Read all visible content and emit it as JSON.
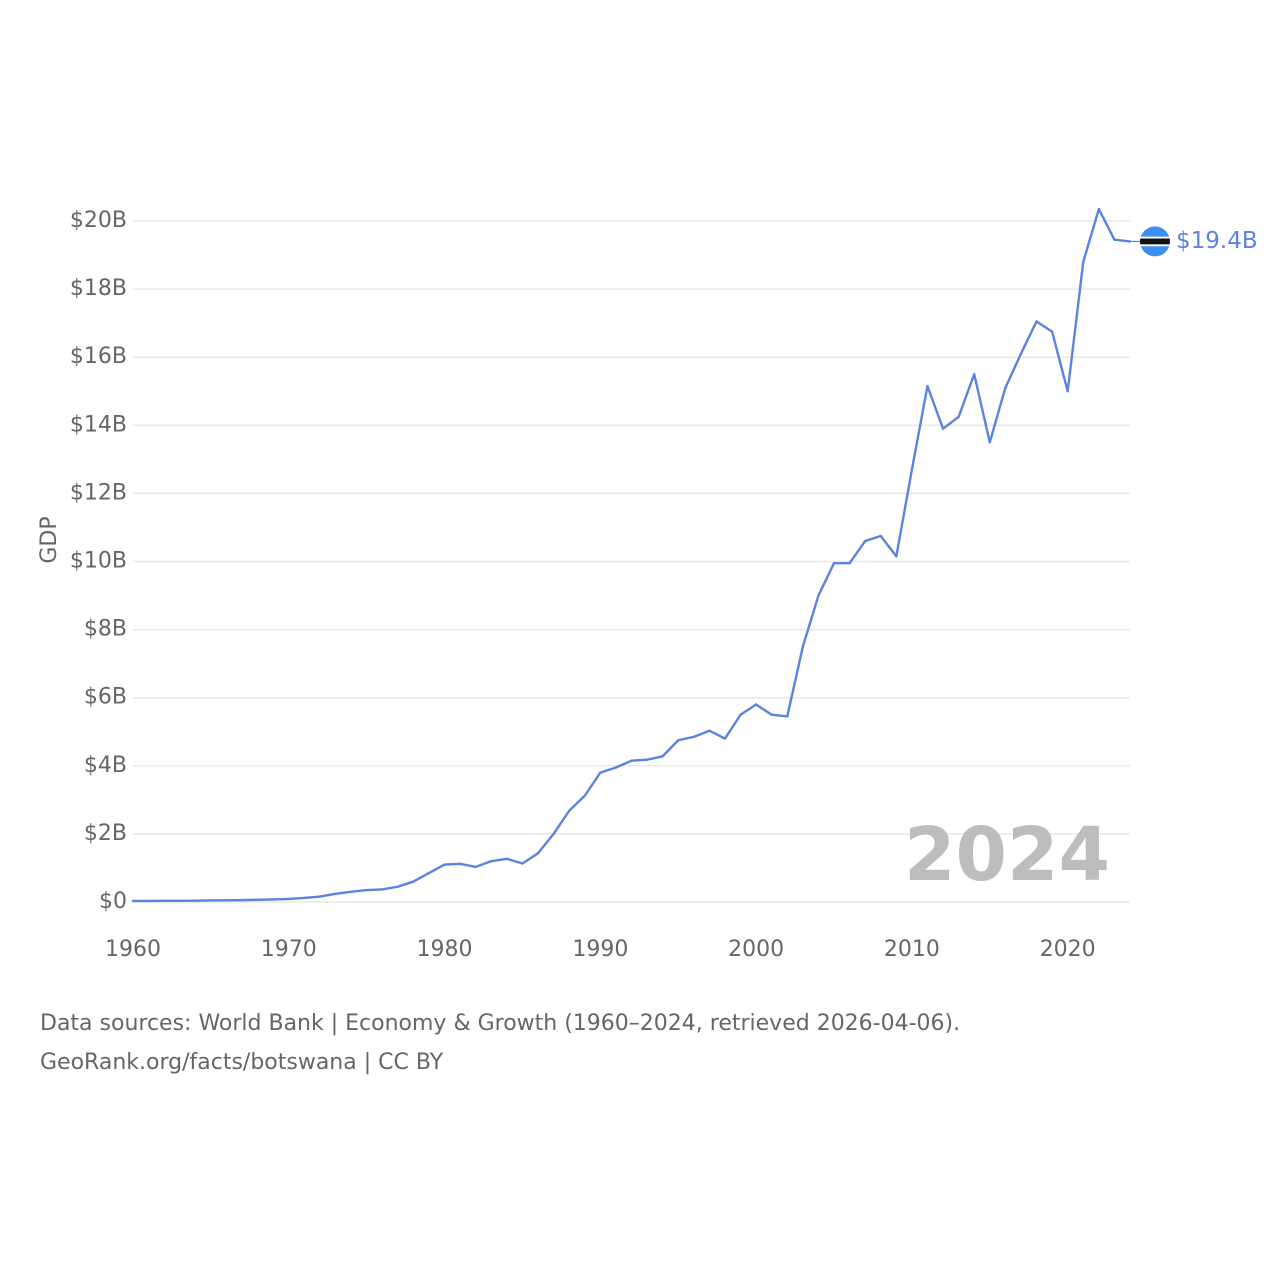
{
  "chart_data": {
    "type": "line",
    "title": "",
    "xlabel": "",
    "ylabel": "GDP",
    "xlim": [
      1960,
      2024
    ],
    "ylim": [
      0,
      20
    ],
    "x_ticks": [
      1960,
      1970,
      1980,
      1990,
      2000,
      2010,
      2020
    ],
    "x_tick_labels": [
      "1960",
      "1970",
      "1980",
      "1990",
      "2000",
      "2010",
      "2020"
    ],
    "y_ticks": [
      0,
      2,
      4,
      6,
      8,
      10,
      12,
      14,
      16,
      18,
      20
    ],
    "y_tick_labels": [
      "$0",
      "$2B",
      "$4B",
      "$6B",
      "$8B",
      "$10B",
      "$12B",
      "$14B",
      "$16B",
      "$18B",
      "$20B"
    ],
    "grid": true,
    "unit": "billion USD",
    "series": [
      {
        "name": "Botswana",
        "color": "#5b83e0",
        "x": [
          1960,
          1961,
          1962,
          1963,
          1964,
          1965,
          1966,
          1967,
          1968,
          1969,
          1970,
          1971,
          1972,
          1973,
          1974,
          1975,
          1976,
          1977,
          1978,
          1979,
          1980,
          1981,
          1982,
          1983,
          1984,
          1985,
          1986,
          1987,
          1988,
          1989,
          1990,
          1991,
          1992,
          1993,
          1994,
          1995,
          1996,
          1997,
          1998,
          1999,
          2000,
          2001,
          2002,
          2003,
          2004,
          2005,
          2006,
          2007,
          2008,
          2009,
          2010,
          2011,
          2012,
          2013,
          2014,
          2015,
          2016,
          2017,
          2018,
          2019,
          2020,
          2021,
          2022,
          2023,
          2024
        ],
        "values": [
          0.03,
          0.03,
          0.035,
          0.035,
          0.04,
          0.045,
          0.05,
          0.055,
          0.065,
          0.075,
          0.09,
          0.12,
          0.16,
          0.24,
          0.3,
          0.35,
          0.37,
          0.45,
          0.6,
          0.85,
          1.1,
          1.12,
          1.03,
          1.2,
          1.27,
          1.13,
          1.43,
          2.0,
          2.68,
          3.12,
          3.8,
          3.95,
          4.15,
          4.18,
          4.28,
          4.75,
          4.85,
          5.03,
          4.8,
          5.5,
          5.8,
          5.5,
          5.45,
          7.5,
          9.0,
          9.95,
          9.95,
          10.6,
          10.75,
          10.15,
          12.7,
          15.15,
          13.9,
          14.25,
          15.5,
          13.5,
          15.1,
          16.1,
          17.05,
          16.75,
          15.0,
          18.8,
          20.35,
          19.45,
          19.4
        ]
      }
    ],
    "end_label": "$19.4B",
    "year_label": "2024",
    "flag_colors": {
      "blue": "#3d8ff2",
      "black": "#111111",
      "white": "#ffffff"
    },
    "gridline_color": "#e8e8e8",
    "tick_label_color": "#666666"
  },
  "sources": {
    "line1": "Data sources: World Bank | Economy & Growth (1960–2024, retrieved 2026-04-06).",
    "line2": "GeoRank.org/facts/botswana | CC BY"
  }
}
